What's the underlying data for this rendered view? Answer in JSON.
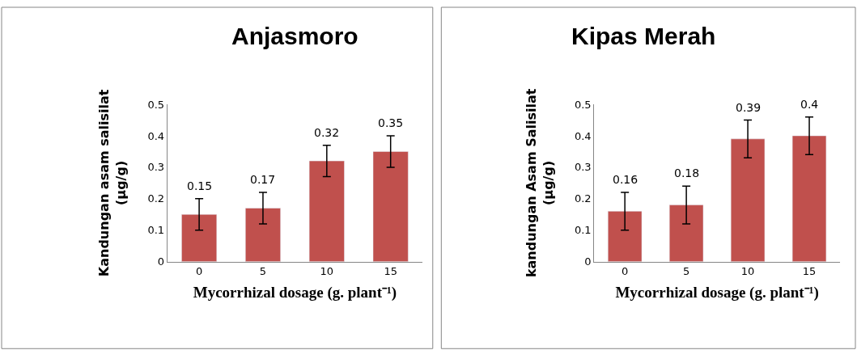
{
  "chart_data": [
    {
      "type": "bar",
      "title": "Anjasmoro",
      "xlabel": "Mycorrhizal dosage (g. plant⁻¹)",
      "ylabel": "Kandungan asam salisilat\n(µg/g)",
      "categories": [
        "0",
        "5",
        "10",
        "15"
      ],
      "values": [
        0.15,
        0.17,
        0.32,
        0.35
      ],
      "errors": [
        0.05,
        0.05,
        0.05,
        0.05
      ],
      "color": "#c0504d",
      "ylim": [
        0,
        0.5
      ],
      "yticks": [
        0,
        0.1,
        0.2,
        0.3,
        0.4,
        0.5
      ],
      "data_labels": true
    },
    {
      "type": "bar",
      "title": "Kipas Merah",
      "xlabel": "Mycorrhizal dosage (g. plant⁻¹)",
      "ylabel": "kandungan Asam Salisilat\n(µg/g)",
      "categories": [
        "0",
        "5",
        "10",
        "15"
      ],
      "values": [
        0.16,
        0.18,
        0.39,
        0.4
      ],
      "errors": [
        0.06,
        0.06,
        0.06,
        0.06
      ],
      "color": "#c0504d",
      "ylim": [
        0,
        0.5
      ],
      "yticks": [
        0,
        0.1,
        0.2,
        0.3,
        0.4,
        0.5
      ],
      "data_labels": true
    }
  ]
}
